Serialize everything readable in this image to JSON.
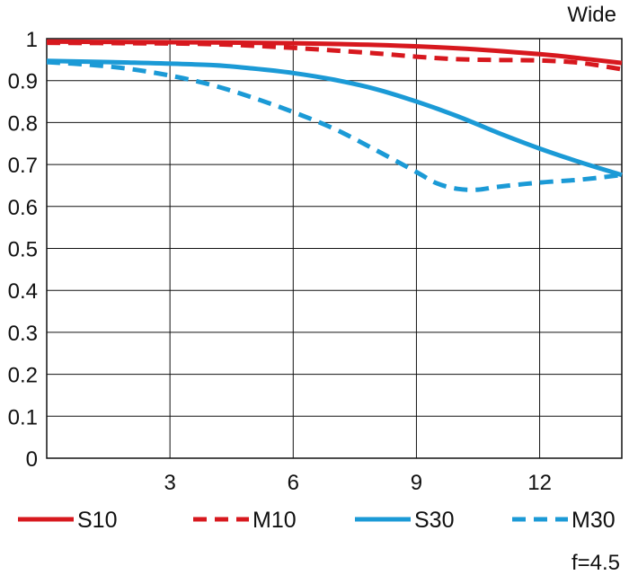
{
  "chart_data": {
    "type": "line",
    "corner_label": "Wide",
    "footnote": "f=4.5",
    "xlim": [
      0,
      14
    ],
    "ylim": [
      0,
      1
    ],
    "x_ticks": [
      3,
      6,
      9,
      12
    ],
    "x_tick_labels": [
      "3",
      "6",
      "9",
      "12"
    ],
    "y_ticks": [
      0,
      0.1,
      0.2,
      0.3,
      0.4,
      0.5,
      0.6,
      0.7,
      0.8,
      0.9,
      1
    ],
    "y_tick_labels": [
      "0",
      "0.1",
      "0.2",
      "0.3",
      "0.4",
      "0.5",
      "0.6",
      "0.7",
      "0.8",
      "0.9",
      "1"
    ],
    "grid": true,
    "series": [
      {
        "name": "S10",
        "color": "#d7181e",
        "dashed": false,
        "x": [
          0,
          2,
          4,
          6,
          8,
          10,
          12,
          13,
          14
        ],
        "y": [
          0.993,
          0.992,
          0.991,
          0.989,
          0.985,
          0.977,
          0.963,
          0.953,
          0.942
        ]
      },
      {
        "name": "M10",
        "color": "#d7181e",
        "dashed": true,
        "x": [
          0,
          2,
          4,
          6,
          8,
          9,
          10,
          11,
          12,
          13,
          14
        ],
        "y": [
          0.99,
          0.989,
          0.987,
          0.978,
          0.965,
          0.957,
          0.951,
          0.949,
          0.948,
          0.942,
          0.927
        ]
      },
      {
        "name": "S30",
        "color": "#1b9ad6",
        "dashed": false,
        "x": [
          0,
          2,
          4,
          5,
          6,
          7,
          8,
          9,
          10,
          11,
          12,
          13,
          14
        ],
        "y": [
          0.947,
          0.943,
          0.937,
          0.929,
          0.918,
          0.902,
          0.88,
          0.85,
          0.815,
          0.775,
          0.738,
          0.705,
          0.675
        ]
      },
      {
        "name": "M30",
        "color": "#1b9ad6",
        "dashed": true,
        "x": [
          0,
          1,
          2,
          3,
          4,
          5,
          6,
          7,
          8,
          9,
          9.5,
          10,
          10.5,
          11,
          12,
          13,
          14
        ],
        "y": [
          0.944,
          0.938,
          0.928,
          0.912,
          0.89,
          0.86,
          0.825,
          0.785,
          0.735,
          0.682,
          0.655,
          0.642,
          0.64,
          0.647,
          0.657,
          0.664,
          0.675
        ]
      }
    ]
  }
}
